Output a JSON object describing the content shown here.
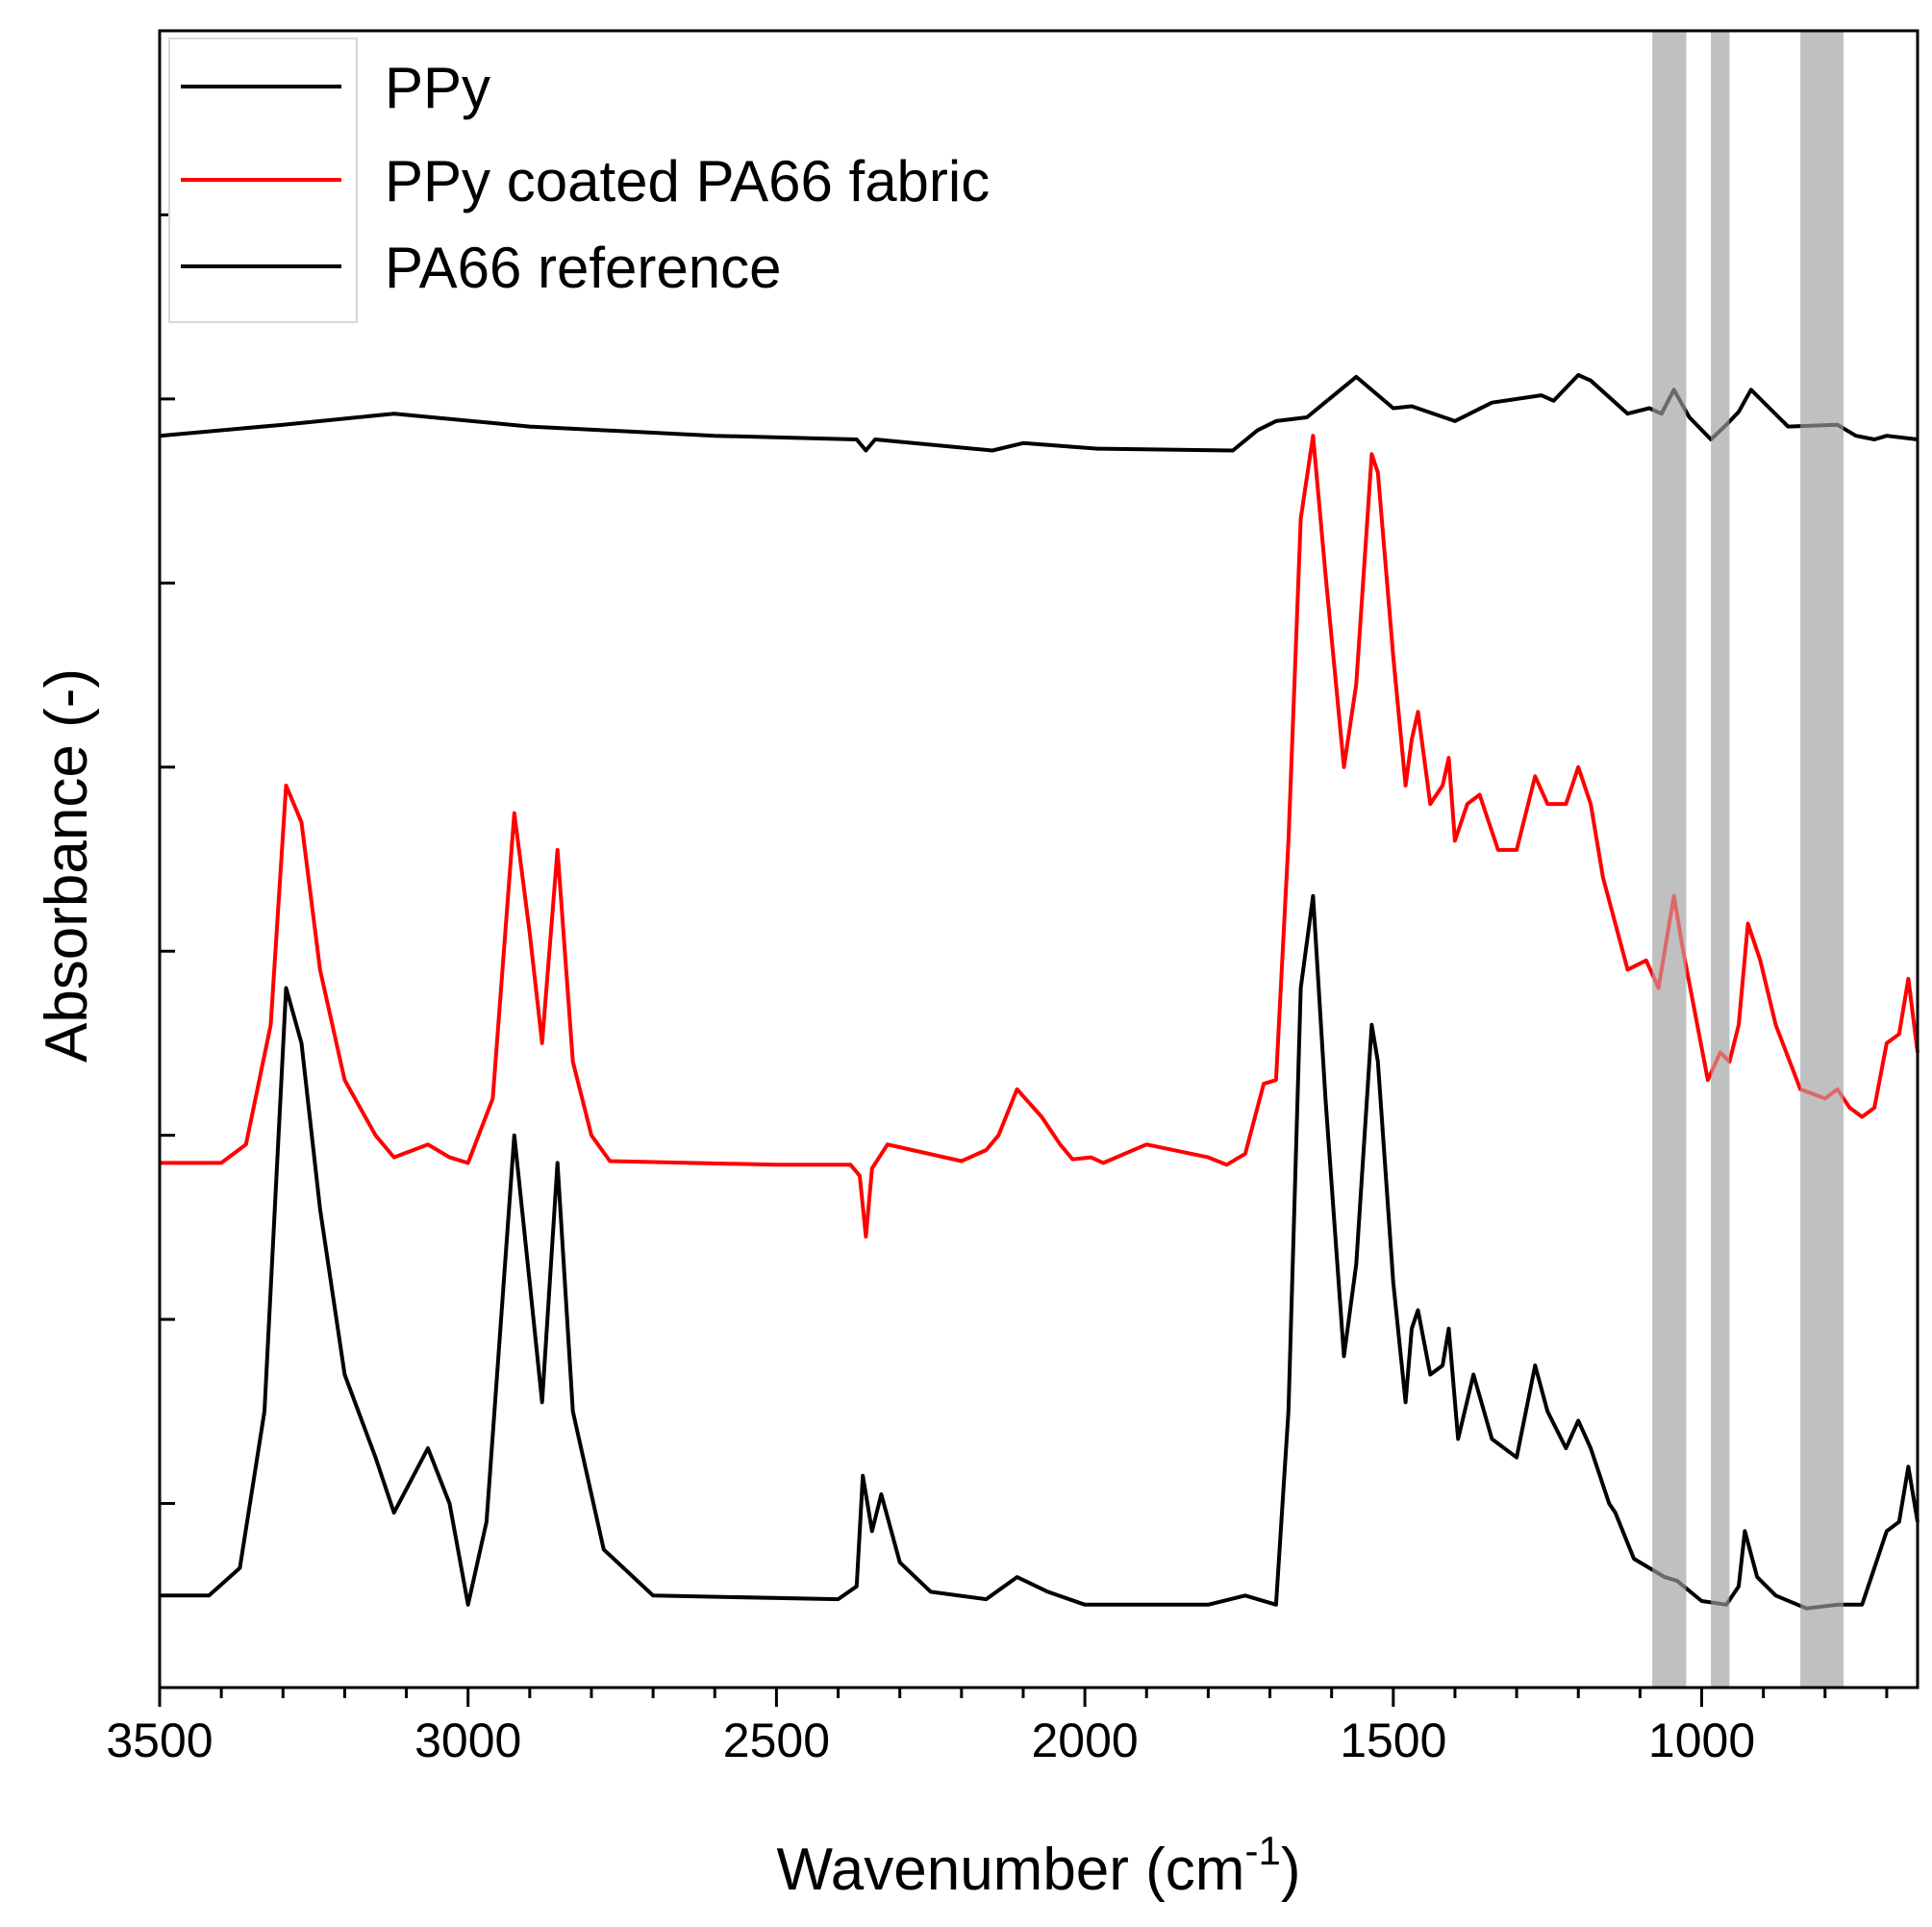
{
  "chart_data": {
    "type": "line",
    "xlabel": "Wavenumber (cm",
    "xlabel_superscript": "-1",
    "xlabel_suffix": ")",
    "ylabel": "Absorbance (-)",
    "xlim": [
      3500,
      650
    ],
    "x_reversed": true,
    "ylim": [
      0,
      9
    ],
    "y_tick_labels_shown": false,
    "x_ticks": [
      3500,
      3000,
      2500,
      2000,
      1500,
      1000
    ],
    "x_tick_labels": [
      "3500",
      "3000",
      "2500",
      "2000",
      "1500",
      "1000"
    ],
    "y_ticks": [
      1,
      2,
      3,
      4,
      5,
      6,
      7,
      8
    ],
    "legend_position": "top-left",
    "highlight_bands": [
      {
        "from": 1080,
        "to": 1025,
        "color": "#c0c0c0"
      },
      {
        "from": 985,
        "to": 955,
        "color": "#c0c0c0"
      },
      {
        "from": 840,
        "to": 770,
        "color": "#c0c0c0"
      }
    ],
    "series": [
      {
        "name": "PPy",
        "color": "#000000",
        "baseline": 6.8,
        "points": [
          [
            3500,
            6.8
          ],
          [
            3300,
            6.86
          ],
          [
            3120,
            6.92
          ],
          [
            2900,
            6.85
          ],
          [
            2600,
            6.8
          ],
          [
            2370,
            6.78
          ],
          [
            2355,
            6.72
          ],
          [
            2340,
            6.78
          ],
          [
            2150,
            6.72
          ],
          [
            2100,
            6.76
          ],
          [
            1980,
            6.73
          ],
          [
            1760,
            6.72
          ],
          [
            1720,
            6.83
          ],
          [
            1690,
            6.88
          ],
          [
            1640,
            6.9
          ],
          [
            1560,
            7.12
          ],
          [
            1500,
            6.95
          ],
          [
            1470,
            6.96
          ],
          [
            1400,
            6.88
          ],
          [
            1340,
            6.98
          ],
          [
            1260,
            7.02
          ],
          [
            1240,
            6.99
          ],
          [
            1200,
            7.13
          ],
          [
            1180,
            7.1
          ],
          [
            1120,
            6.92
          ],
          [
            1085,
            6.95
          ],
          [
            1065,
            6.92
          ],
          [
            1045,
            7.05
          ],
          [
            1020,
            6.9
          ],
          [
            985,
            6.78
          ],
          [
            960,
            6.86
          ],
          [
            940,
            6.93
          ],
          [
            920,
            7.05
          ],
          [
            890,
            6.95
          ],
          [
            860,
            6.85
          ],
          [
            780,
            6.86
          ],
          [
            750,
            6.8
          ],
          [
            720,
            6.78
          ],
          [
            700,
            6.8
          ],
          [
            650,
            6.78
          ]
        ]
      },
      {
        "name": "PPy coated PA66 fabric",
        "color": "#ff0000",
        "baseline": 2.8,
        "points": [
          [
            3500,
            2.85
          ],
          [
            3400,
            2.85
          ],
          [
            3360,
            2.95
          ],
          [
            3320,
            3.6
          ],
          [
            3295,
            4.9
          ],
          [
            3270,
            4.7
          ],
          [
            3240,
            3.9
          ],
          [
            3200,
            3.3
          ],
          [
            3150,
            3.0
          ],
          [
            3120,
            2.88
          ],
          [
            3065,
            2.95
          ],
          [
            3030,
            2.88
          ],
          [
            3000,
            2.85
          ],
          [
            2960,
            3.2
          ],
          [
            2925,
            4.75
          ],
          [
            2900,
            4.1
          ],
          [
            2880,
            3.5
          ],
          [
            2855,
            4.55
          ],
          [
            2830,
            3.4
          ],
          [
            2800,
            3.0
          ],
          [
            2770,
            2.86
          ],
          [
            2500,
            2.84
          ],
          [
            2380,
            2.84
          ],
          [
            2365,
            2.78
          ],
          [
            2355,
            2.45
          ],
          [
            2345,
            2.82
          ],
          [
            2320,
            2.95
          ],
          [
            2280,
            2.92
          ],
          [
            2200,
            2.86
          ],
          [
            2160,
            2.92
          ],
          [
            2140,
            3.0
          ],
          [
            2110,
            3.25
          ],
          [
            2070,
            3.1
          ],
          [
            2040,
            2.95
          ],
          [
            2020,
            2.87
          ],
          [
            1990,
            2.88
          ],
          [
            1970,
            2.85
          ],
          [
            1900,
            2.95
          ],
          [
            1800,
            2.88
          ],
          [
            1770,
            2.84
          ],
          [
            1740,
            2.9
          ],
          [
            1710,
            3.28
          ],
          [
            1690,
            3.3
          ],
          [
            1670,
            4.6
          ],
          [
            1650,
            6.35
          ],
          [
            1630,
            6.8
          ],
          [
            1610,
            6.05
          ],
          [
            1580,
            5.0
          ],
          [
            1560,
            5.45
          ],
          [
            1535,
            6.7
          ],
          [
            1525,
            6.6
          ],
          [
            1500,
            5.6
          ],
          [
            1480,
            4.9
          ],
          [
            1470,
            5.15
          ],
          [
            1460,
            5.3
          ],
          [
            1440,
            4.8
          ],
          [
            1420,
            4.9
          ],
          [
            1410,
            5.05
          ],
          [
            1400,
            4.6
          ],
          [
            1380,
            4.8
          ],
          [
            1360,
            4.85
          ],
          [
            1330,
            4.55
          ],
          [
            1300,
            4.55
          ],
          [
            1270,
            4.95
          ],
          [
            1250,
            4.8
          ],
          [
            1220,
            4.8
          ],
          [
            1200,
            5.0
          ],
          [
            1180,
            4.8
          ],
          [
            1160,
            4.4
          ],
          [
            1140,
            4.15
          ],
          [
            1120,
            3.9
          ],
          [
            1090,
            3.95
          ],
          [
            1070,
            3.8
          ],
          [
            1045,
            4.3
          ],
          [
            1030,
            4.0
          ],
          [
            1010,
            3.65
          ],
          [
            990,
            3.3
          ],
          [
            970,
            3.45
          ],
          [
            955,
            3.4
          ],
          [
            940,
            3.6
          ],
          [
            925,
            4.15
          ],
          [
            905,
            3.95
          ],
          [
            880,
            3.6
          ],
          [
            840,
            3.25
          ],
          [
            800,
            3.2
          ],
          [
            780,
            3.25
          ],
          [
            760,
            3.15
          ],
          [
            740,
            3.1
          ],
          [
            720,
            3.15
          ],
          [
            700,
            3.5
          ],
          [
            680,
            3.55
          ],
          [
            665,
            3.85
          ],
          [
            650,
            3.45
          ]
        ]
      },
      {
        "name": "PA66 reference",
        "color": "#000000",
        "baseline": 0.5,
        "points": [
          [
            3500,
            0.5
          ],
          [
            3420,
            0.5
          ],
          [
            3370,
            0.65
          ],
          [
            3330,
            1.5
          ],
          [
            3295,
            3.8
          ],
          [
            3270,
            3.5
          ],
          [
            3240,
            2.6
          ],
          [
            3200,
            1.7
          ],
          [
            3150,
            1.25
          ],
          [
            3120,
            0.95
          ],
          [
            3065,
            1.3
          ],
          [
            3030,
            1.0
          ],
          [
            3000,
            0.45
          ],
          [
            2970,
            0.9
          ],
          [
            2925,
            3.0
          ],
          [
            2900,
            2.2
          ],
          [
            2880,
            1.55
          ],
          [
            2855,
            2.85
          ],
          [
            2830,
            1.5
          ],
          [
            2780,
            0.75
          ],
          [
            2700,
            0.5
          ],
          [
            2400,
            0.48
          ],
          [
            2370,
            0.55
          ],
          [
            2360,
            1.15
          ],
          [
            2345,
            0.85
          ],
          [
            2330,
            1.05
          ],
          [
            2300,
            0.68
          ],
          [
            2250,
            0.52
          ],
          [
            2160,
            0.48
          ],
          [
            2110,
            0.6
          ],
          [
            2060,
            0.52
          ],
          [
            2000,
            0.45
          ],
          [
            1800,
            0.45
          ],
          [
            1740,
            0.5
          ],
          [
            1690,
            0.45
          ],
          [
            1670,
            1.5
          ],
          [
            1650,
            3.8
          ],
          [
            1630,
            4.3
          ],
          [
            1610,
            3.2
          ],
          [
            1580,
            1.8
          ],
          [
            1560,
            2.3
          ],
          [
            1535,
            3.6
          ],
          [
            1525,
            3.4
          ],
          [
            1500,
            2.2
          ],
          [
            1480,
            1.55
          ],
          [
            1470,
            1.95
          ],
          [
            1460,
            2.05
          ],
          [
            1440,
            1.7
          ],
          [
            1420,
            1.75
          ],
          [
            1410,
            1.95
          ],
          [
            1395,
            1.35
          ],
          [
            1370,
            1.7
          ],
          [
            1340,
            1.35
          ],
          [
            1300,
            1.25
          ],
          [
            1270,
            1.75
          ],
          [
            1250,
            1.5
          ],
          [
            1220,
            1.3
          ],
          [
            1200,
            1.45
          ],
          [
            1180,
            1.3
          ],
          [
            1150,
            1.0
          ],
          [
            1140,
            0.95
          ],
          [
            1110,
            0.7
          ],
          [
            1060,
            0.6
          ],
          [
            1040,
            0.58
          ],
          [
            1000,
            0.47
          ],
          [
            960,
            0.45
          ],
          [
            940,
            0.55
          ],
          [
            930,
            0.85
          ],
          [
            910,
            0.6
          ],
          [
            880,
            0.5
          ],
          [
            830,
            0.43
          ],
          [
            780,
            0.45
          ],
          [
            740,
            0.45
          ],
          [
            700,
            0.85
          ],
          [
            680,
            0.9
          ],
          [
            665,
            1.2
          ],
          [
            650,
            0.9
          ]
        ]
      }
    ]
  }
}
